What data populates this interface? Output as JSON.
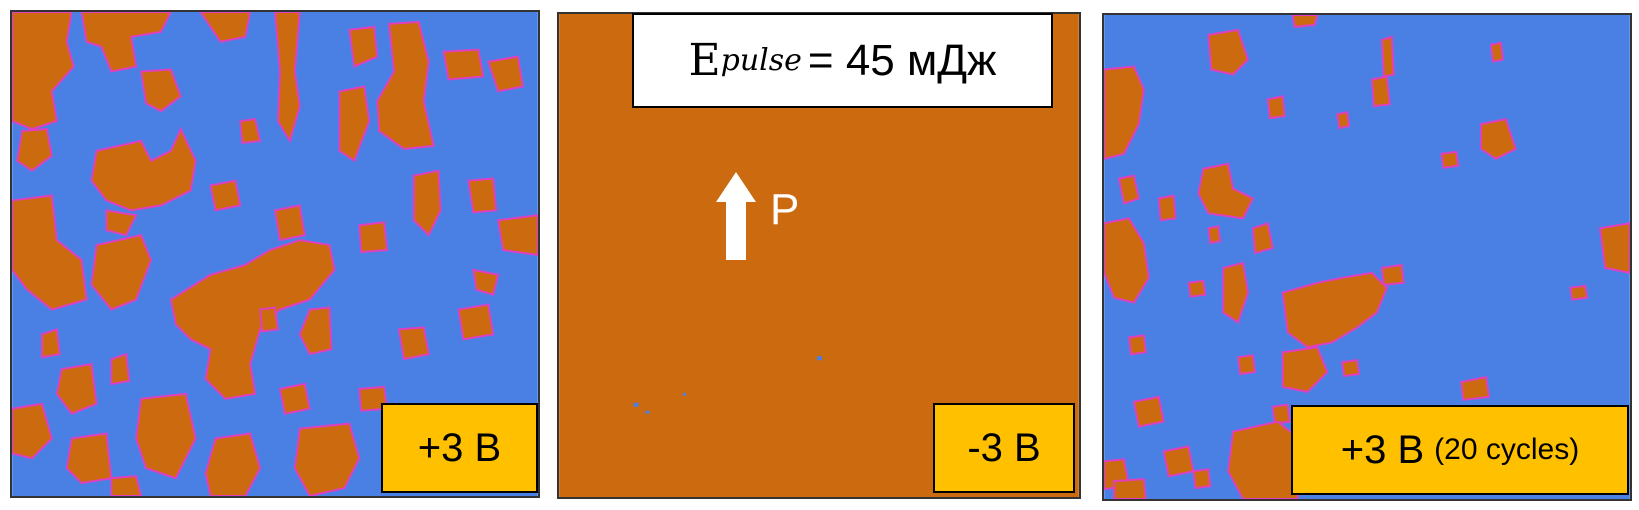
{
  "colors": {
    "down_domain": "#4a80e3",
    "up_domain": "#cc6a10",
    "wall": "#e040c0",
    "label_bg": "#ffc000"
  },
  "panels": [
    {
      "voltage": "+3 В",
      "note": ""
    },
    {
      "voltage": "-3 В",
      "note": ""
    },
    {
      "voltage": "+3 В",
      "note": "(20 cycles)"
    }
  ],
  "energy": {
    "symbol": "E",
    "subscript": "pulse",
    "value": "= 45 мДж"
  },
  "polarization": {
    "icon": "arrow-up-icon",
    "label": "P"
  }
}
